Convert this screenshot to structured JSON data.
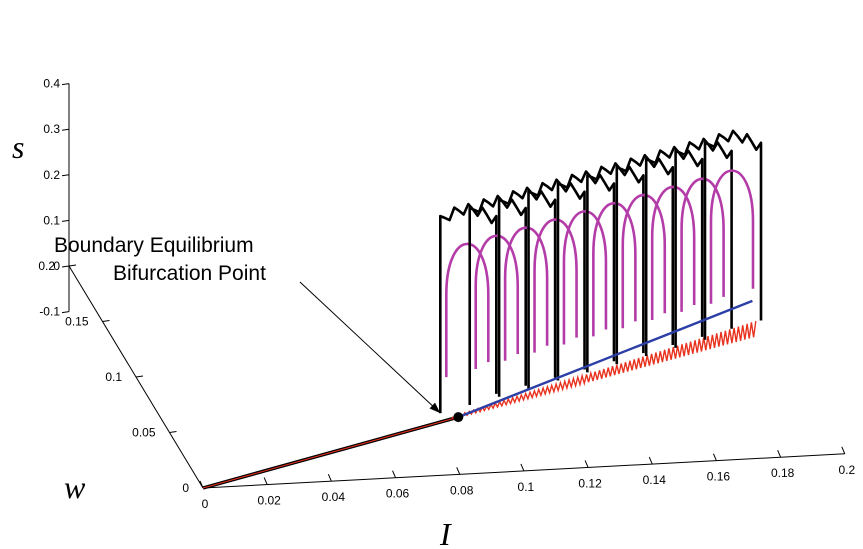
{
  "chart_data": {
    "type": "line",
    "projection": "3d",
    "title": "",
    "axes": {
      "x": {
        "label": "I",
        "ticks": [
          "0",
          "0.02",
          "0.04",
          "0.06",
          "0.08",
          "0.1",
          "0.12",
          "0.14",
          "0.16",
          "0.18",
          "0.2"
        ],
        "range": [
          0,
          0.2
        ]
      },
      "y": {
        "label": "w",
        "ticks": [
          "0",
          "0.05",
          "0.1",
          "0.15",
          "0.2"
        ],
        "range": [
          0,
          0.2
        ]
      },
      "z": {
        "label": "s",
        "ticks": [
          "-0.1",
          "0",
          "0.1",
          "0.2",
          "0.3",
          "0.4"
        ],
        "range": [
          -0.1,
          0.4
        ]
      }
    },
    "grid": false,
    "annotation": {
      "lines": [
        "Boundary Equilibrium",
        "Bifurcation Point"
      ],
      "target": {
        "I": 0.09,
        "w": 0.05,
        "s": 0
      }
    },
    "series": [
      {
        "color": "#000000",
        "style": "equilibrium branch",
        "points": [
          {
            "I": 0.0,
            "w": 0.0,
            "s": 0
          },
          {
            "I": 0.09,
            "w": 0.05,
            "s": 0
          }
        ]
      },
      {
        "color": "#2b3fa6",
        "style": "branch beyond bifurcation",
        "points": [
          {
            "I": 0.09,
            "w": 0.05,
            "s": 0
          },
          {
            "I": 0.19,
            "w": 0.09,
            "s": 0.12
          }
        ]
      },
      {
        "color": "#e8321e",
        "style": "stochastic oscillation band",
        "points": [
          {
            "I": 0.088,
            "w": 0.05,
            "s": 0.0
          },
          {
            "I": 0.19,
            "w": 0.085,
            "s": 0.08
          }
        ]
      },
      {
        "color": "#b43ca8",
        "style": "limit cycles",
        "I": [
          0.09,
          0.1,
          0.11,
          0.12,
          0.13,
          0.14,
          0.15,
          0.16,
          0.17,
          0.18
        ]
      },
      {
        "color": "#000000",
        "style": "noisy cycle envelopes",
        "I": [
          0.09,
          0.1,
          0.11,
          0.12,
          0.13,
          0.14,
          0.15,
          0.16,
          0.17,
          0.18
        ]
      }
    ],
    "colors": {
      "magenta": "#b43ca8",
      "blue": "#2b3fa6",
      "red": "#e8321e",
      "black": "#000000"
    }
  }
}
